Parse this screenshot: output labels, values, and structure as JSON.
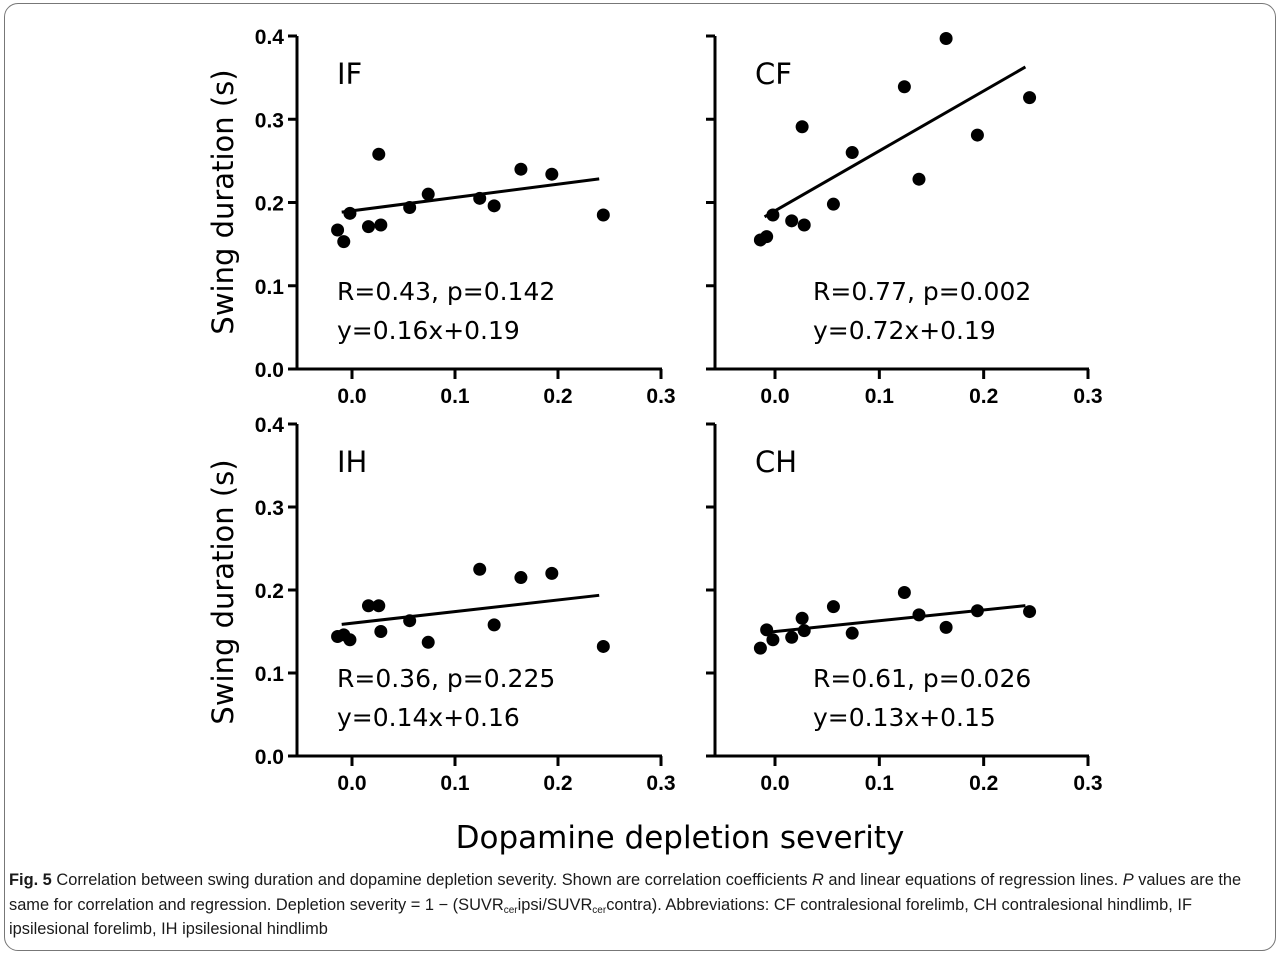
{
  "x_axis_title": "Dopamine depletion severity",
  "y_axis_title": "Swing duration (s)",
  "chart_data": [
    {
      "type": "scatter",
      "panel_label": "IF",
      "annotation_line1": "R=0.43, p=0.142",
      "annotation_line2": "y=0.16x+0.19",
      "xlim": [
        -0.05,
        0.3
      ],
      "ylim": [
        0.0,
        0.4
      ],
      "x_ticks": [
        "0.0",
        "0.1",
        "0.2",
        "0.3"
      ],
      "y_ticks": [
        "0.0",
        "0.1",
        "0.2",
        "0.3",
        "0.4"
      ],
      "x_tick_values": [
        0.0,
        0.1,
        0.2,
        0.3
      ],
      "y_tick_values": [
        0.0,
        0.1,
        0.2,
        0.3,
        0.4
      ],
      "points": [
        [
          -0.014,
          0.167
        ],
        [
          -0.008,
          0.153
        ],
        [
          -0.002,
          0.187
        ],
        [
          0.016,
          0.171
        ],
        [
          0.026,
          0.258
        ],
        [
          0.028,
          0.173
        ],
        [
          0.056,
          0.194
        ],
        [
          0.074,
          0.21
        ],
        [
          0.124,
          0.205
        ],
        [
          0.138,
          0.196
        ],
        [
          0.164,
          0.24
        ],
        [
          0.194,
          0.234
        ],
        [
          0.244,
          0.185
        ]
      ],
      "fit": {
        "slope": 0.16,
        "intercept": 0.19,
        "x_range": [
          -0.01,
          0.24
        ]
      }
    },
    {
      "type": "scatter",
      "panel_label": "CF",
      "annotation_line1": "R=0.77, p=0.002",
      "annotation_line2": "y=0.72x+0.19",
      "xlim": [
        -0.05,
        0.3
      ],
      "ylim": [
        0.0,
        0.4
      ],
      "x_ticks": [
        "0.0",
        "0.1",
        "0.2",
        "0.3"
      ],
      "y_ticks": [],
      "x_tick_values": [
        0.0,
        0.1,
        0.2,
        0.3
      ],
      "y_tick_values": [
        0.0,
        0.1,
        0.2,
        0.3,
        0.4
      ],
      "points": [
        [
          -0.014,
          0.155
        ],
        [
          -0.008,
          0.159
        ],
        [
          -0.002,
          0.185
        ],
        [
          0.016,
          0.178
        ],
        [
          0.026,
          0.291
        ],
        [
          0.028,
          0.173
        ],
        [
          0.056,
          0.198
        ],
        [
          0.074,
          0.26
        ],
        [
          0.124,
          0.339
        ],
        [
          0.138,
          0.228
        ],
        [
          0.164,
          0.397
        ],
        [
          0.194,
          0.281
        ],
        [
          0.244,
          0.326
        ]
      ],
      "fit": {
        "slope": 0.72,
        "intercept": 0.19,
        "x_range": [
          -0.01,
          0.24
        ]
      }
    },
    {
      "type": "scatter",
      "panel_label": "IH",
      "annotation_line1": "R=0.36, p=0.225",
      "annotation_line2": "y=0.14x+0.16",
      "xlim": [
        -0.05,
        0.3
      ],
      "ylim": [
        0.0,
        0.4
      ],
      "x_ticks": [
        "0.0",
        "0.1",
        "0.2",
        "0.3"
      ],
      "y_ticks": [
        "0.0",
        "0.1",
        "0.2",
        "0.3",
        "0.4"
      ],
      "x_tick_values": [
        0.0,
        0.1,
        0.2,
        0.3
      ],
      "y_tick_values": [
        0.0,
        0.1,
        0.2,
        0.3,
        0.4
      ],
      "points": [
        [
          -0.014,
          0.144
        ],
        [
          -0.008,
          0.146
        ],
        [
          -0.002,
          0.14
        ],
        [
          0.016,
          0.181
        ],
        [
          0.026,
          0.181
        ],
        [
          0.028,
          0.15
        ],
        [
          0.056,
          0.163
        ],
        [
          0.074,
          0.137
        ],
        [
          0.124,
          0.225
        ],
        [
          0.138,
          0.158
        ],
        [
          0.164,
          0.215
        ],
        [
          0.194,
          0.22
        ],
        [
          0.244,
          0.132
        ]
      ],
      "fit": {
        "slope": 0.14,
        "intercept": 0.16,
        "x_range": [
          -0.01,
          0.24
        ]
      }
    },
    {
      "type": "scatter",
      "panel_label": "CH",
      "annotation_line1": "R=0.61, p=0.026",
      "annotation_line2": "y=0.13x+0.15",
      "xlim": [
        -0.05,
        0.3
      ],
      "ylim": [
        0.0,
        0.4
      ],
      "x_ticks": [
        "0.0",
        "0.1",
        "0.2",
        "0.3"
      ],
      "y_ticks": [],
      "x_tick_values": [
        0.0,
        0.1,
        0.2,
        0.3
      ],
      "y_tick_values": [
        0.0,
        0.1,
        0.2,
        0.3,
        0.4
      ],
      "points": [
        [
          -0.014,
          0.13
        ],
        [
          -0.008,
          0.152
        ],
        [
          -0.002,
          0.14
        ],
        [
          0.016,
          0.143
        ],
        [
          0.026,
          0.166
        ],
        [
          0.028,
          0.151
        ],
        [
          0.056,
          0.18
        ],
        [
          0.074,
          0.148
        ],
        [
          0.124,
          0.197
        ],
        [
          0.138,
          0.17
        ],
        [
          0.164,
          0.155
        ],
        [
          0.194,
          0.175
        ],
        [
          0.244,
          0.174
        ]
      ],
      "fit": {
        "slope": 0.13,
        "intercept": 0.15,
        "x_range": [
          -0.01,
          0.24
        ]
      }
    }
  ],
  "caption": {
    "fig_label": "Fig. 5",
    "text_a": " Correlation between swing duration and dopamine depletion severity. Shown are correlation coefficients ",
    "italic_r": "R",
    "text_b": " and linear equations of regression lines. ",
    "italic_p": "P",
    "text_c": " values are the same for correlation and regression. Depletion severity = 1 − (SUVR",
    "sub_1": "cer",
    "text_d": "ipsi/SUVR",
    "sub_2": "cer",
    "text_e": "contra). Abbreviations: CF contralesional forelimb, CH contralesional hindlimb, IF ipsilesional forelimb, IH ipsilesional hindlimb"
  },
  "colors": {
    "marks": "#000000",
    "caption_text": "#1a1a1a",
    "frame": "#777777"
  }
}
